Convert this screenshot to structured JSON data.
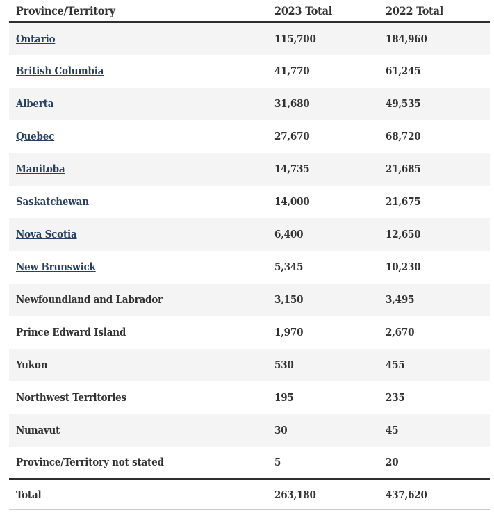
{
  "table": {
    "columns": [
      "Province/Territory",
      "2023 Total",
      "2022 Total"
    ],
    "rows": [
      {
        "label": "Ontario",
        "link": true,
        "y2023": "115,700",
        "y2022": "184,960"
      },
      {
        "label": "British Columbia",
        "link": true,
        "y2023": "41,770",
        "y2022": "61,245"
      },
      {
        "label": "Alberta",
        "link": true,
        "y2023": "31,680",
        "y2022": "49,535"
      },
      {
        "label": "Quebec",
        "link": true,
        "y2023": "27,670",
        "y2022": "68,720"
      },
      {
        "label": "Manitoba",
        "link": true,
        "y2023": "14,735",
        "y2022": "21,685"
      },
      {
        "label": "Saskatchewan",
        "link": true,
        "y2023": "14,000",
        "y2022": "21,675"
      },
      {
        "label": "Nova Scotia",
        "link": true,
        "y2023": "6,400",
        "y2022": "12,650"
      },
      {
        "label": "New Brunswick",
        "link": true,
        "y2023": "5,345",
        "y2022": "10,230"
      },
      {
        "label": "Newfoundland and Labrador",
        "link": false,
        "y2023": "3,150",
        "y2022": "3,495"
      },
      {
        "label": "Prince Edward Island",
        "link": false,
        "y2023": "1,970",
        "y2022": "2,670"
      },
      {
        "label": "Yukon",
        "link": false,
        "y2023": "530",
        "y2022": "455"
      },
      {
        "label": "Northwest Territories",
        "link": false,
        "y2023": "195",
        "y2022": "235"
      },
      {
        "label": "Nunavut",
        "link": false,
        "y2023": "30",
        "y2022": "45"
      },
      {
        "label": "Province/Territory not stated",
        "link": false,
        "y2023": "5",
        "y2022": "20"
      }
    ],
    "total": {
      "label": "Total",
      "y2023": "263,180",
      "y2022": "437,620"
    }
  },
  "chart_data": {
    "type": "table",
    "title": "",
    "columns": [
      "Province/Territory",
      "2023 Total",
      "2022 Total"
    ],
    "rows": [
      [
        "Ontario",
        115700,
        184960
      ],
      [
        "British Columbia",
        41770,
        61245
      ],
      [
        "Alberta",
        31680,
        49535
      ],
      [
        "Quebec",
        27670,
        68720
      ],
      [
        "Manitoba",
        14735,
        21685
      ],
      [
        "Saskatchewan",
        14000,
        21675
      ],
      [
        "Nova Scotia",
        6400,
        12650
      ],
      [
        "New Brunswick",
        5345,
        10230
      ],
      [
        "Newfoundland and Labrador",
        3150,
        3495
      ],
      [
        "Prince Edward Island",
        1970,
        2670
      ],
      [
        "Yukon",
        530,
        455
      ],
      [
        "Northwest Territories",
        195,
        235
      ],
      [
        "Nunavut",
        30,
        45
      ],
      [
        "Province/Territory not stated",
        5,
        20
      ],
      [
        "Total",
        263180,
        437620
      ]
    ]
  },
  "colors": {
    "link": "#284162",
    "text": "#333333",
    "stripe": "#f4f4f5",
    "rule_dark": "#2e2e2e",
    "rule_light": "#cccccc"
  }
}
